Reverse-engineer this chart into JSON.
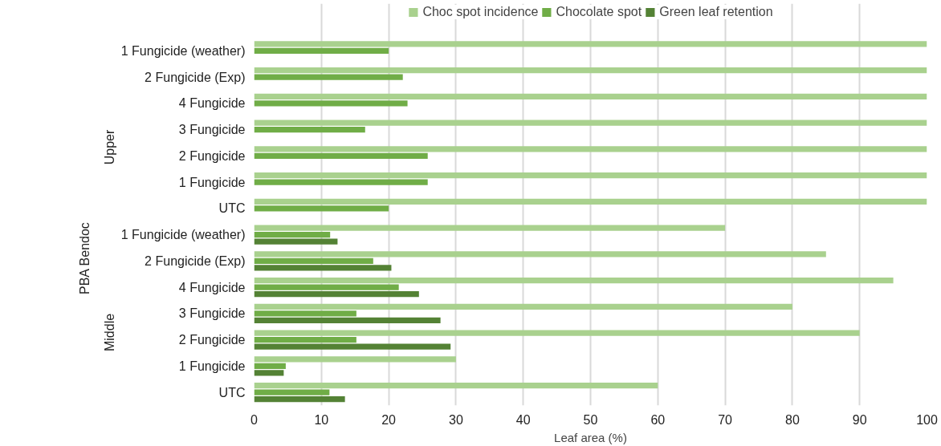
{
  "chart_data": {
    "type": "bar",
    "orientation": "horizontal",
    "xlabel": "Leaf area (%)",
    "categories": [
      "1 Fungicide (weather)",
      "2 Fungicide (Exp)",
      "4 Fungicide",
      "3 Fungicide",
      "2 Fungicide",
      "1 Fungicide",
      "UTC",
      "1 Fungicide (weather)",
      "2 Fungicide (Exp)",
      "4 Fungicide",
      "3 Fungicide",
      "2 Fungicide",
      "1 Fungicide",
      "UTC"
    ],
    "series": [
      {
        "name": "Choc spot incidence",
        "color": "#a9d18e",
        "values": [
          100,
          100,
          100,
          100,
          100,
          100,
          100,
          70,
          85,
          95,
          80,
          90,
          30,
          60
        ]
      },
      {
        "name": "Chocolate spot",
        "color": "#70ad47",
        "values": [
          20,
          22.1,
          22.8,
          16.5,
          25.8,
          25.8,
          20,
          11.3,
          17.7,
          21.5,
          15.2,
          15.2,
          4.7,
          11.2
        ]
      },
      {
        "name": "Green leaf retention",
        "color": "#548235",
        "values": [
          null,
          null,
          null,
          null,
          null,
          null,
          null,
          12.4,
          20.4,
          24.5,
          27.7,
          29.2,
          4.4,
          13.5
        ]
      }
    ],
    "xlim": [
      0,
      100
    ],
    "xticks": [
      0,
      10,
      20,
      30,
      40,
      50,
      60,
      70,
      80,
      90,
      100
    ],
    "grid": "x",
    "legend": "top",
    "annotations": [
      "PBA Bendoc",
      "Upper",
      "Middle"
    ]
  }
}
